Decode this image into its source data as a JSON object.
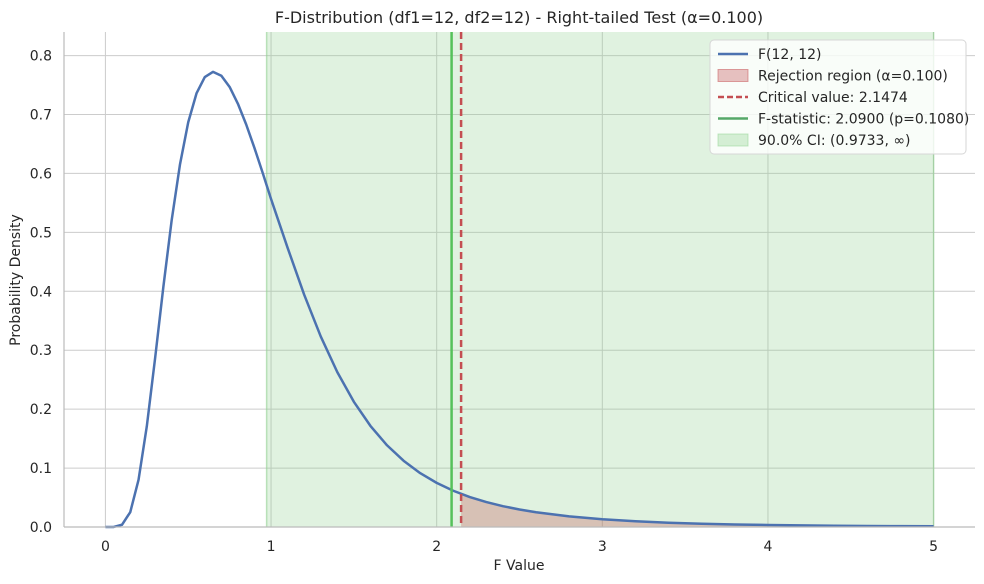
{
  "chart_data": {
    "type": "line",
    "title": "F-Distribution (df1=12, df2=12) - Right-tailed Test (α=0.100)",
    "xlabel": "F Value",
    "ylabel": "Probability Density",
    "xlim": [
      -0.25,
      5.25
    ],
    "ylim": [
      0,
      0.84
    ],
    "xticks": [
      0,
      1,
      2,
      3,
      4,
      5
    ],
    "yticks": [
      0.0,
      0.1,
      0.2,
      0.3,
      0.4,
      0.5,
      0.6,
      0.7,
      0.8
    ],
    "grid": true,
    "legend_position": "top-right",
    "df1": 12,
    "df2": 12,
    "alpha": 0.1,
    "critical_value": 2.1474,
    "f_statistic": 2.09,
    "p_value": 0.108,
    "ci_lower": 0.9733,
    "ci_upper_display": 5,
    "series": [
      {
        "name": "F(12, 12)",
        "color": "#4c72b0",
        "x": [
          0,
          0.05,
          0.1,
          0.15,
          0.2,
          0.25,
          0.3,
          0.35,
          0.4,
          0.45,
          0.5,
          0.55,
          0.6,
          0.65,
          0.7,
          0.75,
          0.8,
          0.85,
          0.9,
          0.95,
          1.0,
          1.1,
          1.2,
          1.3,
          1.4,
          1.5,
          1.6,
          1.7,
          1.8,
          1.9,
          2.0,
          2.1,
          2.2,
          2.3,
          2.4,
          2.5,
          2.6,
          2.8,
          3.0,
          3.2,
          3.4,
          3.6,
          3.8,
          4.0,
          4.2,
          4.4,
          4.6,
          4.8,
          5.0
        ],
        "y": [
          0,
          0.0001,
          0.0038,
          0.0252,
          0.0801,
          0.171,
          0.2864,
          0.4078,
          0.5205,
          0.6149,
          0.6868,
          0.7359,
          0.7635,
          0.7724,
          0.7658,
          0.7467,
          0.7182,
          0.683,
          0.6431,
          0.6005,
          0.5566,
          0.4738,
          0.3942,
          0.3234,
          0.2628,
          0.2125,
          0.1716,
          0.1387,
          0.1125,
          0.0915,
          0.0749,
          0.0615,
          0.0508,
          0.0423,
          0.0353,
          0.0297,
          0.0251,
          0.018,
          0.0131,
          0.0098,
          0.0073,
          0.0056,
          0.0043,
          0.0034,
          0.0027,
          0.0022,
          0.0017,
          0.0014,
          0.0012
        ]
      }
    ],
    "legend": [
      {
        "label": "F(12, 12)",
        "kind": "line",
        "color": "#4c72b0"
      },
      {
        "label": "Rejection region (α=0.100)",
        "kind": "patch",
        "color": "#c44e52"
      },
      {
        "label": "Critical value: 2.1474",
        "kind": "dashed",
        "color": "#c44e52"
      },
      {
        "label": "F-statistic: 2.0900 (p=0.1080)",
        "kind": "line",
        "color": "#55a868"
      },
      {
        "label": "90.0% CI: (0.9733, ∞)",
        "kind": "patch",
        "color": "#8fd18f"
      }
    ],
    "colors": {
      "curve": "#4c72b0",
      "critical": "#c44e52",
      "rejection_fill": "#c44e52",
      "statistic": "#55c15a",
      "ci_fill": "#8fd18f",
      "grid": "#cccccc"
    }
  }
}
